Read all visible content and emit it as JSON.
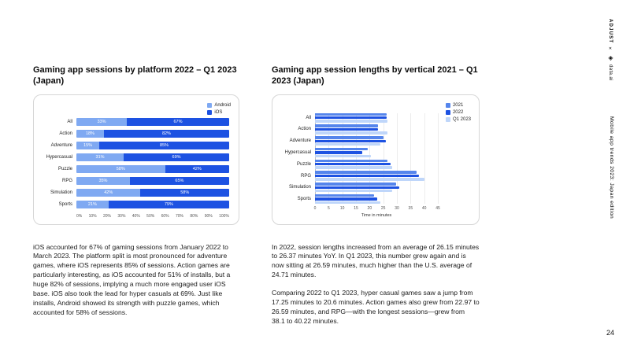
{
  "page": {
    "number": "24"
  },
  "rail": {
    "adjust": "ADJUST",
    "separator": "✕",
    "dataai_logo": "◈",
    "dataai": "data.ai",
    "edition": "Mobile app trends 2023: Japan edition"
  },
  "left_section": {
    "paragraph": "iOS accounted for 67% of gaming sessions from January 2022 to March 2023. The platform split is most pronounced for adventure games, where iOS represents 85% of sessions. Action games are particularly interesting, as iOS accounted for 51% of installs, but a huge 82% of sessions, implying a much more engaged user iOS base. iOS also took the lead for hyper casuals at 69%. Just like installs, Android showed its strength with puzzle games, which accounted for 58% of sessions."
  },
  "right_section": {
    "paragraph1": "In 2022, session lengths increased from an average of 26.15 minutes to 26.37 minutes YoY. In Q1 2023, this number grew again and is now sitting at 26.59 minutes, much higher than the U.S. average of 24.71 minutes.",
    "paragraph2": "Comparing 2022 to Q1 2023, hyper casual games saw a jump from 17.25 minutes to 20.6 minutes. Action games also grew from 22.97 to 26.59 minutes, and RPG—with the longest sessions—grew from 38.1 to 40.22 minutes."
  },
  "chart_data": [
    {
      "type": "bar",
      "variant": "horizontal-stacked",
      "title": "Gaming app sessions by platform 2022 – Q1 2023 (Japan)",
      "categories": [
        "All",
        "Action",
        "Adventure",
        "Hypercasual",
        "Puzzle",
        "RPG",
        "Simulation",
        "Sports"
      ],
      "series": [
        {
          "name": "Android",
          "color": "#7FA9F2",
          "values": [
            33,
            18,
            15,
            31,
            58,
            35,
            42,
            21
          ]
        },
        {
          "name": "iOS",
          "color": "#1D52E2",
          "values": [
            67,
            82,
            85,
            69,
            42,
            65,
            58,
            79
          ]
        }
      ],
      "value_suffix": "%",
      "xlim": [
        0,
        100
      ],
      "xticks": [
        "0%",
        "10%",
        "20%",
        "30%",
        "40%",
        "50%",
        "60%",
        "70%",
        "80%",
        "90%",
        "100%"
      ],
      "legend_position": "top-right",
      "grid": false,
      "xlabel": ""
    },
    {
      "type": "bar",
      "variant": "horizontal-grouped",
      "title": "Gaming app session lengths by vertical 2021 – Q1 2023 (Japan)",
      "categories": [
        "All",
        "Action",
        "Adventure",
        "Hypercasual",
        "Puzzle",
        "RPG",
        "Simulation",
        "Sports"
      ],
      "series": [
        {
          "name": "2021",
          "color": "#5585EC",
          "values": [
            26.15,
            23.1,
            25.2,
            19.4,
            26.5,
            37.2,
            29.6,
            21.7
          ]
        },
        {
          "name": "2022",
          "color": "#1D52E2",
          "values": [
            26.37,
            22.97,
            26.1,
            17.25,
            27.8,
            38.1,
            30.8,
            22.9
          ]
        },
        {
          "name": "Q1 2023",
          "color": "#BFD6FA",
          "values": [
            26.59,
            26.59,
            23.9,
            20.6,
            28.3,
            40.22,
            28.4,
            23.8
          ]
        }
      ],
      "xlim": [
        0,
        45
      ],
      "xticks": [
        0,
        5,
        10,
        15,
        20,
        25,
        30,
        35,
        40,
        45
      ],
      "legend_position": "top-right",
      "grid": true,
      "xlabel": "Time in minutes"
    }
  ]
}
